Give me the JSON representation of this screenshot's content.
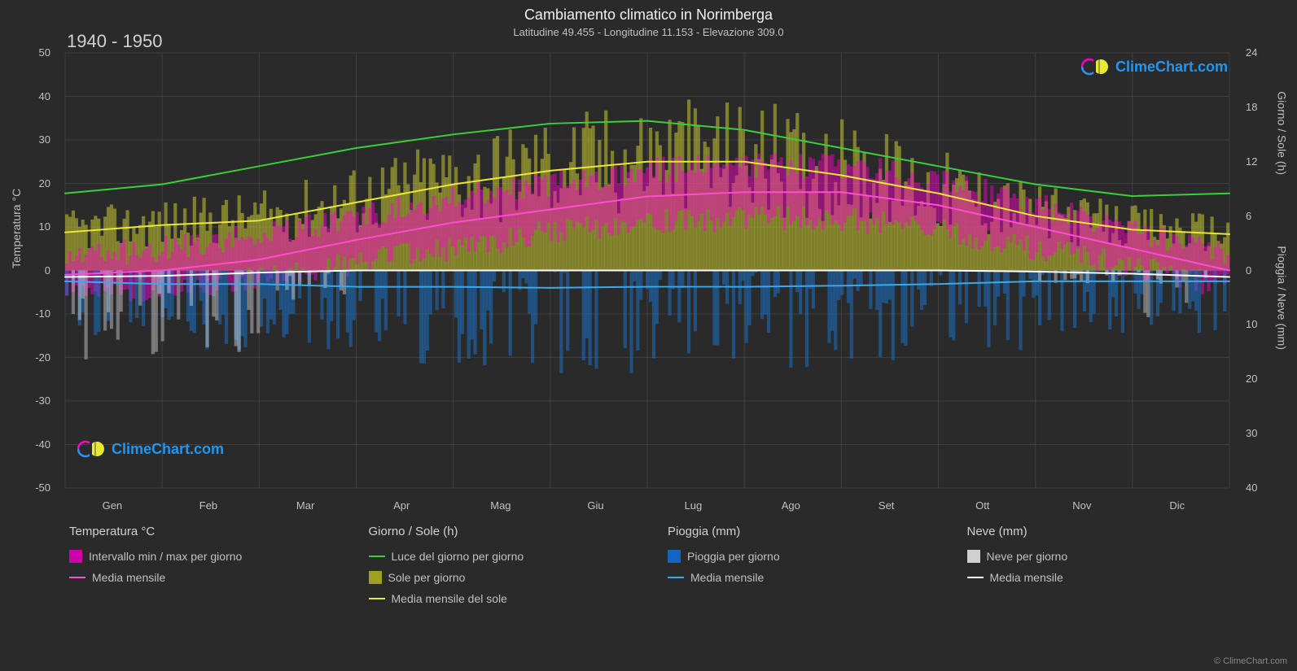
{
  "title": "Cambiamento climatico in Norimberga",
  "subtitle": "Latitudine 49.455 - Longitudine 11.153 - Elevazione 309.0",
  "period": "1940 - 1950",
  "watermark_text": "ClimeChart.com",
  "watermark_color": "#2196f3",
  "copyright": "© ClimeChart.com",
  "chart": {
    "background": "#2a2a2a",
    "plot_bg": "#2a2a2a",
    "grid_color": "#555555",
    "grid_width": 1,
    "axis_color": "#888888",
    "text_color": "#c0c0c0",
    "months": [
      "Gen",
      "Feb",
      "Mar",
      "Apr",
      "Mag",
      "Giu",
      "Lug",
      "Ago",
      "Set",
      "Ott",
      "Nov",
      "Dic"
    ],
    "y_left": {
      "label": "Temperatura °C",
      "min": -50,
      "max": 50,
      "ticks": [
        -50,
        -40,
        -30,
        -20,
        -10,
        0,
        10,
        20,
        30,
        40,
        50
      ]
    },
    "y_right_top": {
      "label": "Giorno / Sole (h)",
      "min": 0,
      "max": 24,
      "ticks": [
        0,
        6,
        12,
        18,
        24
      ]
    },
    "y_right_bottom": {
      "label": "Pioggia / Neve (mm)",
      "min": 0,
      "max": 40,
      "ticks": [
        0,
        10,
        20,
        30,
        40
      ]
    },
    "series": {
      "daylight": {
        "color": "#3bce3b",
        "width": 2,
        "values": [
          8.5,
          9.5,
          11.5,
          13.5,
          15,
          16.2,
          16.5,
          15.5,
          13.5,
          11.5,
          9.5,
          8.2,
          8.5
        ]
      },
      "sun_monthly": {
        "color": "#e8e835",
        "width": 2,
        "values": [
          4.2,
          5,
          5.5,
          7.5,
          9.5,
          11,
          12,
          12,
          10.5,
          8.5,
          6,
          4.5,
          4.0
        ]
      },
      "temp_monthly": {
        "color": "#ff4dd2",
        "width": 2,
        "values": [
          -1,
          0,
          2.5,
          7,
          11,
          14,
          17,
          18,
          18,
          15,
          10,
          5,
          0
        ]
      },
      "rain_monthly": {
        "color": "#3ba8e8",
        "width": 2,
        "values": [
          2,
          2.5,
          2.5,
          3,
          3,
          3.2,
          3,
          3,
          2.8,
          2.5,
          2,
          2,
          2
        ]
      },
      "snow_monthly": {
        "color": "#ffffff",
        "width": 2,
        "values": [
          1.2,
          1,
          0.4,
          0,
          0,
          0,
          0,
          0,
          0,
          0,
          0.2,
          0.6,
          1.2
        ]
      },
      "sun_daily_bars": {
        "color": "#c4c432",
        "opacity": 0.55
      },
      "temp_range_bars": {
        "color": "#ff00cc",
        "opacity": 0.45
      },
      "rain_bars": {
        "color": "#1976d2",
        "opacity": 0.5
      },
      "snow_bars": {
        "color": "#e8e8e8",
        "opacity": 0.4
      }
    },
    "temp_range_monthly": {
      "min": [
        -5,
        -4,
        -2,
        2,
        5,
        9,
        11,
        12,
        12,
        9,
        5,
        1,
        -4
      ],
      "max": [
        3,
        5,
        8,
        12,
        17,
        20,
        23,
        24,
        24,
        21,
        15,
        9,
        4
      ]
    }
  },
  "legend": {
    "groups": [
      {
        "header": "Temperatura °C",
        "items": [
          {
            "type": "swatch",
            "color": "#cc00aa",
            "label": "Intervallo min / max per giorno"
          },
          {
            "type": "line",
            "color": "#ff4dd2",
            "label": "Media mensile"
          }
        ]
      },
      {
        "header": "Giorno / Sole (h)",
        "items": [
          {
            "type": "line",
            "color": "#3bce3b",
            "label": "Luce del giorno per giorno"
          },
          {
            "type": "swatch",
            "color": "#a0a020",
            "label": "Sole per giorno"
          },
          {
            "type": "line",
            "color": "#e8e835",
            "label": "Media mensile del sole"
          }
        ]
      },
      {
        "header": "Pioggia (mm)",
        "items": [
          {
            "type": "swatch",
            "color": "#1565c0",
            "label": "Pioggia per giorno"
          },
          {
            "type": "line",
            "color": "#3ba8e8",
            "label": "Media mensile"
          }
        ]
      },
      {
        "header": "Neve (mm)",
        "items": [
          {
            "type": "swatch",
            "color": "#d0d0d0",
            "label": "Neve per giorno"
          },
          {
            "type": "line",
            "color": "#ffffff",
            "label": "Media mensile"
          }
        ]
      }
    ]
  }
}
